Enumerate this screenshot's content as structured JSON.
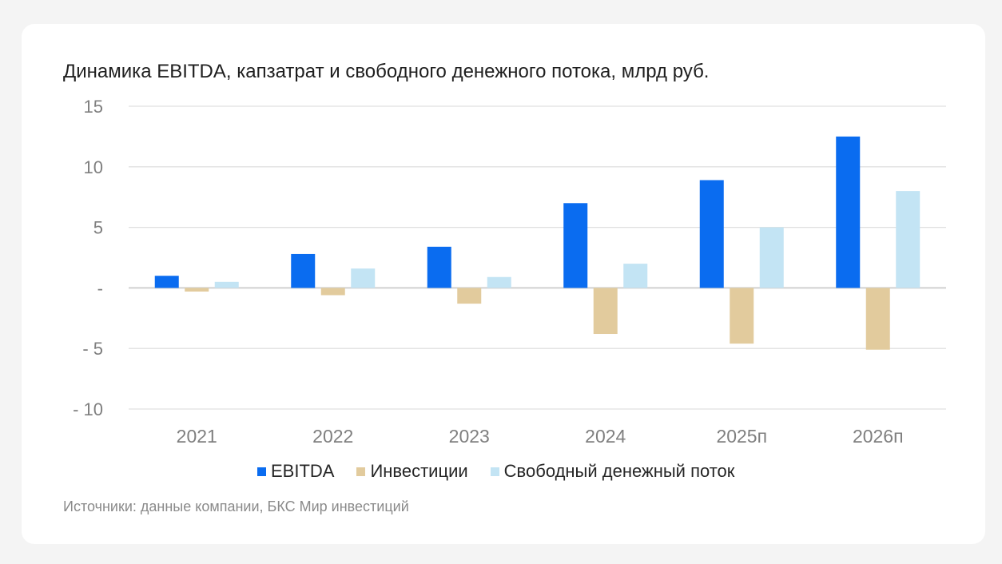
{
  "chart_data": {
    "type": "bar",
    "title": "Динамика EBITDA, капзатрат и свободного денежного потока, млрд руб.",
    "xlabel": "",
    "ylabel": "",
    "ylim": [
      -10,
      15
    ],
    "yticks": [
      15,
      10,
      5,
      0,
      -5,
      -10
    ],
    "ytick_labels": [
      "15",
      "10",
      "5",
      "-",
      "- 5",
      "- 10"
    ],
    "grid": true,
    "legend_position": "bottom",
    "categories": [
      "2021",
      "2022",
      "2023",
      "2024",
      "2025п",
      "2026п"
    ],
    "series": [
      {
        "name": "EBITDA",
        "color": "#0a6cf0",
        "values": [
          1.0,
          2.8,
          3.4,
          7.0,
          8.9,
          12.5
        ]
      },
      {
        "name": "Инвестиции",
        "color": "#e2cb9d",
        "values": [
          -0.3,
          -0.6,
          -1.3,
          -3.8,
          -4.6,
          -5.1
        ]
      },
      {
        "name": "Свободный денежный поток",
        "color": "#c3e4f4",
        "values": [
          0.5,
          1.6,
          0.9,
          2.0,
          5.0,
          8.0
        ]
      }
    ]
  },
  "source": "Источники: данные компании, БКС Мир инвестиций"
}
